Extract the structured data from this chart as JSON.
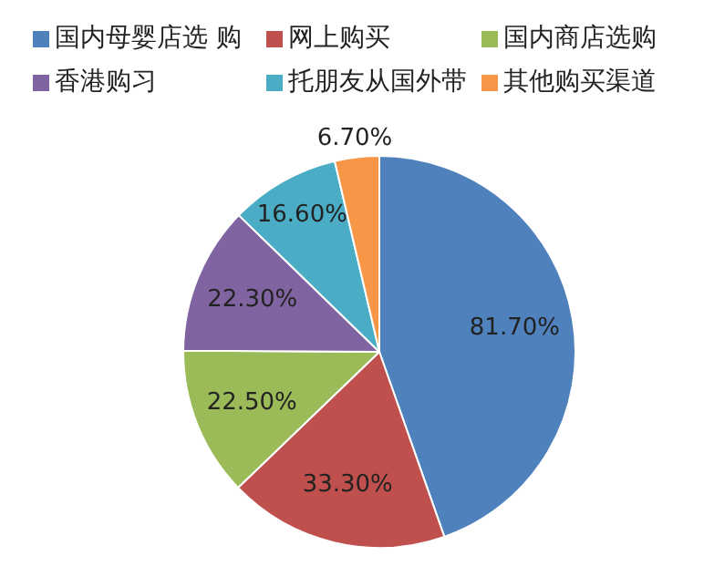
{
  "chart_data": {
    "type": "pie",
    "categories": [
      "国内母婴店选 购",
      "网上购买",
      "国内商店选购",
      "香港购习",
      "托朋友从国外带",
      "其他购买渠道"
    ],
    "values": [
      81.7,
      33.3,
      22.5,
      22.3,
      16.6,
      6.7
    ],
    "colors": [
      "#4f81bd",
      "#c0504d",
      "#9bbb59",
      "#8064a2",
      "#4bacc6",
      "#f79646"
    ],
    "value_labels": [
      "81.70%",
      "33.30%",
      "22.50%",
      "22.30%",
      "16.60%",
      "6.70%"
    ],
    "legend": "top"
  }
}
